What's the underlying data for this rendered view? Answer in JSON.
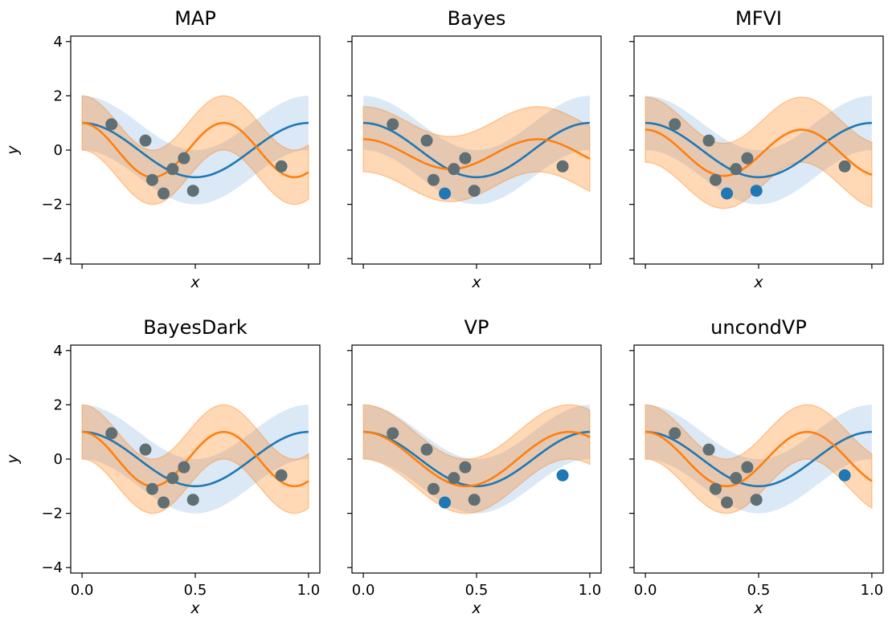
{
  "colors": {
    "blue": "#1f77b4",
    "orange": "#ff7f0e",
    "blue_band": "#cfe1f4",
    "orange_band": "#ff7f0e",
    "point_overlap": "#5f6f73"
  },
  "chart_data": [
    {
      "type": "line",
      "title": "MAP",
      "xlabel": "x",
      "ylabel": "y",
      "xlim": [
        -0.05,
        1.05
      ],
      "ylim": [
        -4.2,
        4.2
      ],
      "yticks": [
        -4,
        -2,
        0,
        2,
        4
      ],
      "yticklabels": [
        "−4",
        "−2",
        "0",
        "2",
        "4"
      ],
      "xticks": [
        0,
        0.5,
        1
      ],
      "xticklabels": [],
      "true_function": {
        "amplitude": 1.0,
        "frequency": 1.0,
        "band_halfwidth": 1.0
      },
      "prediction": {
        "amp": 1.0,
        "freq": 1.6,
        "phase": 0.0,
        "offset": 0.0,
        "halfwidth": 1.0
      },
      "points": [
        {
          "x": 0.13,
          "y": 0.95,
          "selected": false
        },
        {
          "x": 0.28,
          "y": 0.35,
          "selected": false
        },
        {
          "x": 0.31,
          "y": -1.1,
          "selected": false
        },
        {
          "x": 0.36,
          "y": -1.6,
          "selected": false
        },
        {
          "x": 0.4,
          "y": -0.7,
          "selected": false
        },
        {
          "x": 0.45,
          "y": -0.3,
          "selected": false
        },
        {
          "x": 0.49,
          "y": -1.5,
          "selected": false
        },
        {
          "x": 0.88,
          "y": -0.6,
          "selected": false
        }
      ]
    },
    {
      "type": "line",
      "title": "Bayes",
      "xlabel": "x",
      "ylabel": "",
      "xlim": [
        -0.05,
        1.05
      ],
      "ylim": [
        -4.2,
        4.2
      ],
      "yticks": [
        -4,
        -2,
        0,
        2,
        4
      ],
      "yticklabels": [],
      "xticks": [
        0,
        0.5,
        1
      ],
      "xticklabels": [],
      "true_function": {
        "amplitude": 1.0,
        "frequency": 1.0,
        "band_halfwidth": 1.0
      },
      "prediction": {
        "amp": 0.55,
        "freq": 1.3,
        "phase": 0.0,
        "offset": -0.15,
        "halfwidth": 1.2
      },
      "points": [
        {
          "x": 0.13,
          "y": 0.95,
          "selected": false
        },
        {
          "x": 0.28,
          "y": 0.35,
          "selected": false
        },
        {
          "x": 0.31,
          "y": -1.1,
          "selected": false
        },
        {
          "x": 0.36,
          "y": -1.6,
          "selected": true
        },
        {
          "x": 0.4,
          "y": -0.7,
          "selected": false
        },
        {
          "x": 0.45,
          "y": -0.3,
          "selected": false
        },
        {
          "x": 0.49,
          "y": -1.5,
          "selected": false
        },
        {
          "x": 0.88,
          "y": -0.6,
          "selected": false
        }
      ]
    },
    {
      "type": "line",
      "title": "MFVI",
      "xlabel": "x",
      "ylabel": "",
      "xlim": [
        -0.05,
        1.05
      ],
      "ylim": [
        -4.2,
        4.2
      ],
      "yticks": [
        -4,
        -2,
        0,
        2,
        4
      ],
      "yticklabels": [],
      "xticks": [
        0,
        0.5,
        1
      ],
      "xticklabels": [],
      "true_function": {
        "amplitude": 1.0,
        "frequency": 1.0,
        "band_halfwidth": 1.0
      },
      "prediction": {
        "amp": 0.85,
        "freq": 1.45,
        "phase": 0.0,
        "offset": -0.1,
        "halfwidth": 1.2
      },
      "points": [
        {
          "x": 0.13,
          "y": 0.95,
          "selected": false
        },
        {
          "x": 0.28,
          "y": 0.35,
          "selected": false
        },
        {
          "x": 0.31,
          "y": -1.1,
          "selected": false
        },
        {
          "x": 0.36,
          "y": -1.6,
          "selected": true
        },
        {
          "x": 0.4,
          "y": -0.7,
          "selected": false
        },
        {
          "x": 0.45,
          "y": -0.3,
          "selected": false
        },
        {
          "x": 0.49,
          "y": -1.5,
          "selected": true
        },
        {
          "x": 0.88,
          "y": -0.6,
          "selected": false
        }
      ]
    },
    {
      "type": "line",
      "title": "BayesDark",
      "xlabel": "x",
      "ylabel": "y",
      "xlim": [
        -0.05,
        1.05
      ],
      "ylim": [
        -4.2,
        4.2
      ],
      "yticks": [
        -4,
        -2,
        0,
        2,
        4
      ],
      "yticklabels": [
        "−4",
        "−2",
        "0",
        "2",
        "4"
      ],
      "xticks": [
        0,
        0.5,
        1
      ],
      "xticklabels": [
        "0.0",
        "0.5",
        "1.0"
      ],
      "true_function": {
        "amplitude": 1.0,
        "frequency": 1.0,
        "band_halfwidth": 1.0
      },
      "prediction": {
        "amp": 1.0,
        "freq": 1.6,
        "phase": 0.0,
        "offset": 0.0,
        "halfwidth": 1.0
      },
      "points": [
        {
          "x": 0.13,
          "y": 0.95,
          "selected": false
        },
        {
          "x": 0.28,
          "y": 0.35,
          "selected": false
        },
        {
          "x": 0.31,
          "y": -1.1,
          "selected": false
        },
        {
          "x": 0.36,
          "y": -1.6,
          "selected": false
        },
        {
          "x": 0.4,
          "y": -0.7,
          "selected": false
        },
        {
          "x": 0.45,
          "y": -0.3,
          "selected": false
        },
        {
          "x": 0.49,
          "y": -1.5,
          "selected": false
        },
        {
          "x": 0.88,
          "y": -0.6,
          "selected": false
        }
      ]
    },
    {
      "type": "line",
      "title": "VP",
      "xlabel": "x",
      "ylabel": "",
      "xlim": [
        -0.05,
        1.05
      ],
      "ylim": [
        -4.2,
        4.2
      ],
      "yticks": [
        -4,
        -2,
        0,
        2,
        4
      ],
      "yticklabels": [],
      "xticks": [
        0,
        0.5,
        1
      ],
      "xticklabels": [
        "0.0",
        "0.5",
        "1.0"
      ],
      "true_function": {
        "amplitude": 1.0,
        "frequency": 1.0,
        "band_halfwidth": 1.0
      },
      "prediction": {
        "amp": 1.0,
        "freq": 1.1,
        "phase": 0.0,
        "offset": 0.0,
        "halfwidth": 1.0
      },
      "points": [
        {
          "x": 0.13,
          "y": 0.95,
          "selected": false
        },
        {
          "x": 0.28,
          "y": 0.35,
          "selected": false
        },
        {
          "x": 0.31,
          "y": -1.1,
          "selected": false
        },
        {
          "x": 0.36,
          "y": -1.6,
          "selected": true
        },
        {
          "x": 0.4,
          "y": -0.7,
          "selected": false
        },
        {
          "x": 0.45,
          "y": -0.3,
          "selected": false
        },
        {
          "x": 0.49,
          "y": -1.5,
          "selected": false
        },
        {
          "x": 0.88,
          "y": -0.6,
          "selected": true
        }
      ]
    },
    {
      "type": "line",
      "title": "uncondVP",
      "xlabel": "x",
      "ylabel": "",
      "xlim": [
        -0.05,
        1.05
      ],
      "ylim": [
        -4.2,
        4.2
      ],
      "yticks": [
        -4,
        -2,
        0,
        2,
        4
      ],
      "yticklabels": [],
      "xticks": [
        0,
        0.5,
        1
      ],
      "xticklabels": [
        "0.0",
        "0.5",
        "1.0"
      ],
      "true_function": {
        "amplitude": 1.0,
        "frequency": 1.0,
        "band_halfwidth": 1.0
      },
      "prediction": {
        "amp": 1.0,
        "freq": 1.4,
        "phase": 0.0,
        "offset": 0.0,
        "halfwidth": 1.0
      },
      "points": [
        {
          "x": 0.13,
          "y": 0.95,
          "selected": false
        },
        {
          "x": 0.28,
          "y": 0.35,
          "selected": false
        },
        {
          "x": 0.31,
          "y": -1.1,
          "selected": false
        },
        {
          "x": 0.36,
          "y": -1.6,
          "selected": false
        },
        {
          "x": 0.4,
          "y": -0.7,
          "selected": false
        },
        {
          "x": 0.45,
          "y": -0.3,
          "selected": false
        },
        {
          "x": 0.49,
          "y": -1.5,
          "selected": false
        },
        {
          "x": 0.88,
          "y": -0.6,
          "selected": true
        }
      ]
    }
  ]
}
